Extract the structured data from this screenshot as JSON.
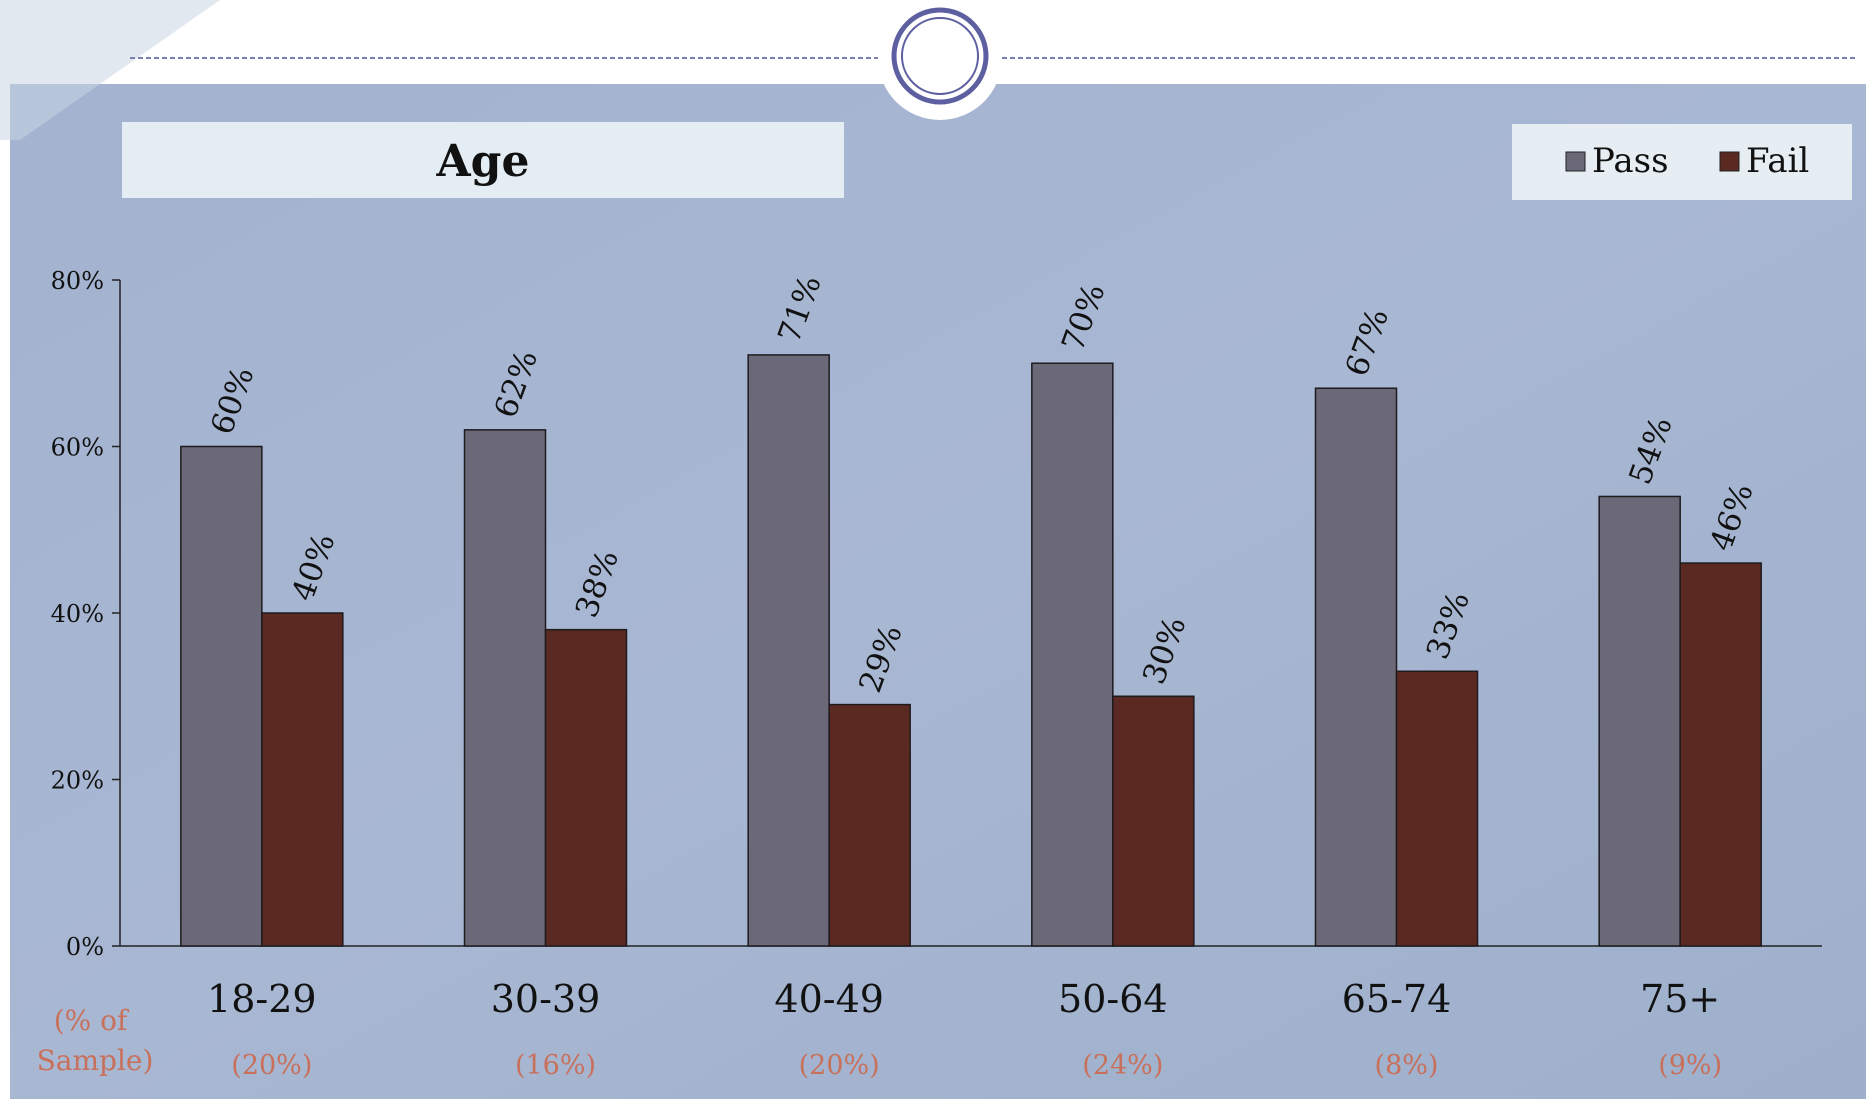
{
  "chart_data": {
    "type": "bar",
    "title": "Age",
    "categories": [
      "18-29",
      "30-39",
      "40-49",
      "50-64",
      "65-74",
      "75+"
    ],
    "series": [
      {
        "name": "Pass",
        "values": [
          60,
          62,
          71,
          70,
          67,
          54
        ],
        "color": "#6b6878"
      },
      {
        "name": "Fail",
        "values": [
          40,
          38,
          29,
          30,
          33,
          46
        ],
        "color": "#5a2a22"
      }
    ],
    "data_labels": {
      "Pass": [
        "60%",
        "62%",
        "71%",
        "70%",
        "67%",
        "54%"
      ],
      "Fail": [
        "40%",
        "38%",
        "29%",
        "30%",
        "33%",
        "46%"
      ]
    },
    "sample_label": "(% of Sample)",
    "sample_label_lines": [
      "(% of",
      "Sample)"
    ],
    "sample_shares": [
      "(20%)",
      "(16%)",
      "(20%)",
      "(24%)",
      "(8%)",
      "(9%)"
    ],
    "ylim": [
      0,
      80
    ],
    "yticks": [
      0,
      20,
      40,
      60,
      80
    ],
    "ytick_labels": [
      "0%",
      "20%",
      "40%",
      "60%",
      "80%"
    ],
    "legend_position": "top-right",
    "grid": false
  },
  "colors": {
    "panel": "#a6b5cf",
    "title_box": "#e4edf3",
    "legend_box": "#e6eef3",
    "sample_text": "#c8705a"
  }
}
